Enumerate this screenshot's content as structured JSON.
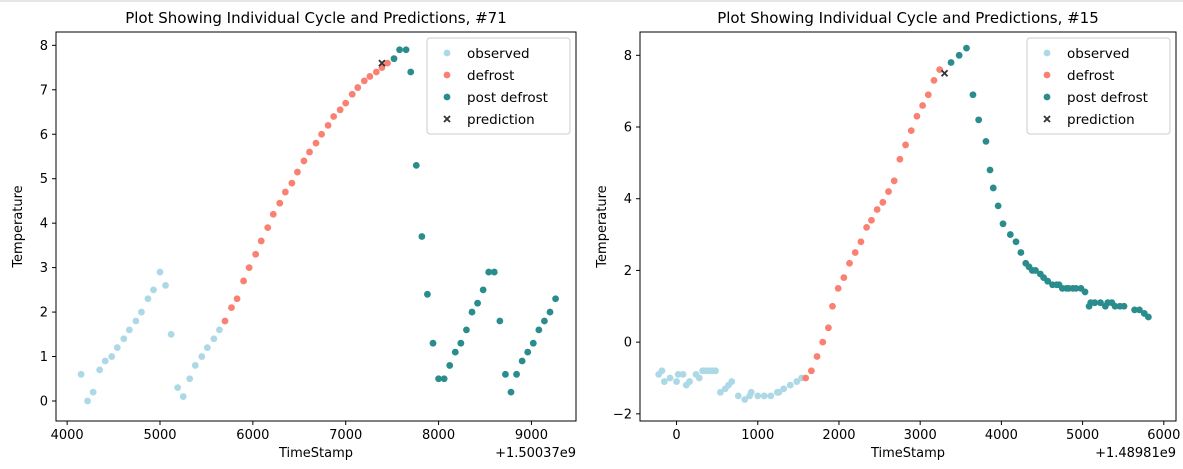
{
  "colors": {
    "observed": "#add8e6",
    "defrost": "#fa8072",
    "post_defrost": "#2a8c8c",
    "prediction": "#333333",
    "axis": "#000000"
  },
  "chart_data": [
    {
      "type": "scatter",
      "title": "Plot Showing Individual Cycle and Predictions, #71",
      "xlabel": "TimeStamp",
      "ylabel": "Temperature",
      "offset_text": "+1.50037e9",
      "xlim": [
        3880,
        9480
      ],
      "ylim": [
        -0.45,
        8.3
      ],
      "xticks": [
        4000,
        5000,
        6000,
        7000,
        8000,
        9000
      ],
      "yticks": [
        0,
        1,
        2,
        3,
        4,
        5,
        6,
        7,
        8
      ],
      "legend": {
        "position": "top-right",
        "entries": [
          "observed",
          "defrost",
          "post defrost",
          "prediction"
        ]
      },
      "series": [
        {
          "name": "observed",
          "x": [
            4150,
            4220,
            4280,
            4350,
            4410,
            4480,
            4540,
            4610,
            4670,
            4740,
            4800,
            4870,
            4930,
            5000,
            5060,
            5120,
            5190,
            5250,
            5320,
            5380,
            5450,
            5510,
            5580,
            5640
          ],
          "y": [
            0.6,
            0.0,
            0.2,
            0.7,
            0.9,
            1.0,
            1.2,
            1.4,
            1.6,
            1.8,
            2.0,
            2.3,
            2.5,
            2.9,
            2.6,
            1.5,
            0.3,
            0.1,
            0.5,
            0.8,
            1.0,
            1.2,
            1.4,
            1.6
          ]
        },
        {
          "name": "defrost",
          "x": [
            5700,
            5770,
            5830,
            5900,
            5960,
            6030,
            6090,
            6160,
            6220,
            6290,
            6350,
            6420,
            6480,
            6550,
            6610,
            6680,
            6740,
            6810,
            6870,
            6940,
            7000,
            7070,
            7130,
            7200,
            7260,
            7330,
            7390,
            7450
          ],
          "y": [
            1.8,
            2.1,
            2.3,
            2.7,
            3.0,
            3.3,
            3.6,
            3.9,
            4.2,
            4.45,
            4.7,
            4.9,
            5.15,
            5.4,
            5.6,
            5.8,
            6.0,
            6.2,
            6.4,
            6.55,
            6.7,
            6.9,
            7.05,
            7.2,
            7.3,
            7.4,
            7.5,
            7.6
          ]
        },
        {
          "name": "post defrost",
          "x": [
            7520,
            7580,
            7650,
            7700,
            7760,
            7820,
            7880,
            7940,
            8000,
            8060,
            8120,
            8180,
            8240,
            8300,
            8360,
            8420,
            8480,
            8540,
            8600,
            8660,
            8720,
            8780,
            8840,
            8900,
            8960,
            9020,
            9080,
            9140,
            9200,
            9260
          ],
          "y": [
            7.7,
            7.9,
            7.9,
            7.4,
            5.3,
            3.7,
            2.4,
            1.3,
            0.5,
            0.5,
            0.8,
            1.1,
            1.3,
            1.6,
            2.0,
            2.2,
            2.5,
            2.9,
            2.9,
            1.8,
            0.6,
            0.2,
            0.6,
            0.9,
            1.1,
            1.3,
            1.6,
            1.8,
            2.0,
            2.3
          ]
        },
        {
          "name": "prediction",
          "x": [
            7390
          ],
          "y": [
            7.6
          ]
        }
      ]
    },
    {
      "type": "scatter",
      "title": "Plot Showing Individual Cycle and Predictions, #15",
      "xlabel": "TimeStamp",
      "ylabel": "Temperature",
      "offset_text": "+1.48981e9",
      "xlim": [
        -450,
        6150
      ],
      "ylim": [
        -2.2,
        8.65
      ],
      "xticks": [
        0,
        1000,
        2000,
        3000,
        4000,
        5000,
        6000
      ],
      "yticks": [
        -2,
        0,
        2,
        4,
        6,
        8
      ],
      "legend": {
        "position": "top-right",
        "entries": [
          "observed",
          "defrost",
          "post defrost",
          "prediction"
        ]
      },
      "series": [
        {
          "name": "observed",
          "x": [
            -220,
            -150,
            -80,
            0,
            80,
            160,
            240,
            320,
            400,
            480,
            540,
            600,
            680,
            760,
            840,
            920,
            1000,
            1080,
            1160,
            1240,
            1320,
            1400,
            1480,
            1540,
            -180,
            20,
            120,
            280,
            360,
            440,
            640,
            900,
            1260
          ],
          "y": [
            -0.9,
            -1.1,
            -1.0,
            -1.1,
            -0.9,
            -1.1,
            -0.9,
            -0.8,
            -0.8,
            -0.8,
            -1.4,
            -1.3,
            -1.1,
            -1.5,
            -1.6,
            -1.4,
            -1.5,
            -1.5,
            -1.5,
            -1.4,
            -1.3,
            -1.2,
            -1.1,
            -1.0,
            -0.8,
            -0.9,
            -1.2,
            -1.0,
            -0.8,
            -0.8,
            -1.2,
            -1.5,
            -1.4
          ]
        },
        {
          "name": "defrost",
          "x": [
            1590,
            1660,
            1730,
            1800,
            1870,
            1920,
            1990,
            2060,
            2130,
            2200,
            2270,
            2340,
            2400,
            2470,
            2540,
            2610,
            2680,
            2750,
            2820,
            2890,
            2960,
            3030,
            3100,
            3170,
            3240
          ],
          "y": [
            -1.0,
            -0.8,
            -0.4,
            0.0,
            0.4,
            1.0,
            1.5,
            1.8,
            2.2,
            2.5,
            2.8,
            3.2,
            3.4,
            3.7,
            3.9,
            4.2,
            4.5,
            5.1,
            5.5,
            5.9,
            6.3,
            6.6,
            6.9,
            7.3,
            7.6
          ]
        },
        {
          "name": "post defrost",
          "x": [
            3380,
            3480,
            3570,
            3650,
            3720,
            3810,
            3860,
            3900,
            3960,
            4020,
            4110,
            4180,
            4240,
            4300,
            4340,
            4380,
            4420,
            4480,
            4520,
            4570,
            4630,
            4680,
            4710,
            4750,
            4800,
            4830,
            4880,
            4920,
            4980,
            5030,
            5080,
            5100,
            5150,
            5220,
            5280,
            5310,
            5360,
            5400,
            5460,
            5510,
            5640,
            5700,
            5760,
            5810
          ],
          "y": [
            7.8,
            8.0,
            8.2,
            6.9,
            6.2,
            5.6,
            4.8,
            4.3,
            3.8,
            3.3,
            3.0,
            2.8,
            2.5,
            2.2,
            2.1,
            2.0,
            2.0,
            1.9,
            1.8,
            1.7,
            1.6,
            1.6,
            1.6,
            1.5,
            1.5,
            1.5,
            1.5,
            1.5,
            1.5,
            1.4,
            1.0,
            1.1,
            1.1,
            1.1,
            1.0,
            1.1,
            1.1,
            1.0,
            1.0,
            1.0,
            0.9,
            0.9,
            0.8,
            0.7
          ]
        },
        {
          "name": "prediction",
          "x": [
            3300
          ],
          "y": [
            7.5
          ]
        }
      ]
    }
  ]
}
